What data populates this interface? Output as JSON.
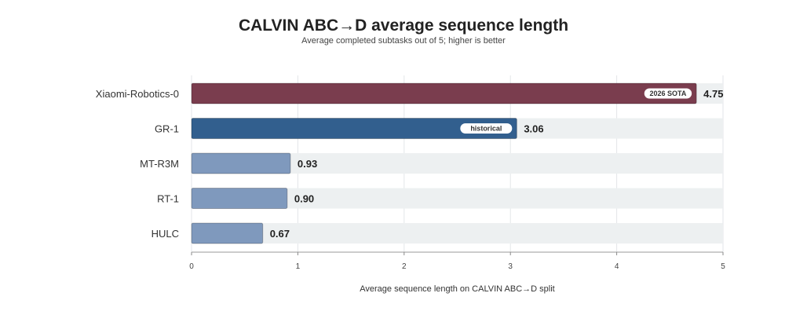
{
  "chart_data": {
    "type": "bar",
    "orientation": "horizontal",
    "title": "CALVIN ABC→D average sequence length",
    "subtitle": "Average completed subtasks out of 5; higher is better",
    "xlabel": "Average sequence length on CALVIN ABC→D split",
    "ylabel": "",
    "xlim": [
      0,
      5
    ],
    "xticks": [
      "0",
      "1",
      "2",
      "3",
      "4",
      "5"
    ],
    "grid": true,
    "categories": [
      "Xiaomi-Robotics-0",
      "GR-1",
      "MT-R3M",
      "RT-1",
      "HULC"
    ],
    "values": [
      4.75,
      3.06,
      0.93,
      0.9,
      0.67
    ],
    "value_labels": [
      "4.75",
      "3.06",
      "0.93",
      "0.90",
      "0.67"
    ],
    "badges": [
      "2026 SOTA",
      "historical",
      "",
      "",
      ""
    ],
    "colors": [
      "#7a3d4e",
      "#325f8e",
      "#7f99bd",
      "#7f99bd",
      "#7f99bd"
    ],
    "track_color": "#edf0f1"
  }
}
